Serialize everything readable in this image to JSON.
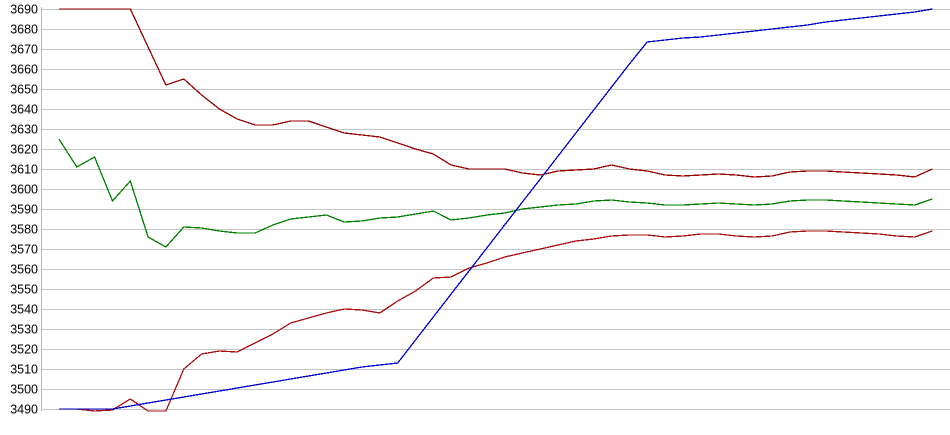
{
  "chart_data": {
    "type": "line",
    "title": "",
    "legend": "none",
    "grid": "horizontal",
    "x_axis": {
      "labels_visible": false,
      "num_points": 50
    },
    "y_axis": {
      "min": 3490,
      "max": 3690,
      "tick_step": 10,
      "tick_labels": [
        "3690",
        "3680",
        "3670",
        "3660",
        "3650",
        "3640",
        "3630",
        "3620",
        "3610",
        "3600",
        "3590",
        "3580",
        "3570",
        "3560",
        "3550",
        "3540",
        "3530",
        "3520",
        "3510",
        "3500",
        "3490"
      ]
    },
    "series": [
      {
        "name": "upper-dark-red-line",
        "color": "#990000",
        "values": [
          3690,
          3690,
          3690,
          3690,
          3690,
          3671,
          3652,
          3655,
          3647,
          3640,
          3635,
          3632,
          3632,
          3634,
          3634,
          3631,
          3628,
          3627,
          3626,
          3623,
          3620,
          3617.5,
          3612,
          3610,
          3610,
          3610,
          3608,
          3607,
          3609,
          3609.5,
          3610,
          3612,
          3610,
          3609,
          3607,
          3606.5,
          3607,
          3607.5,
          3607,
          3606,
          3606.5,
          3608.5,
          3609,
          3609,
          3608.5,
          3608,
          3607.5,
          3607,
          3606,
          3610
        ]
      },
      {
        "name": "green-line",
        "color": "#008000",
        "values": [
          3625,
          3611,
          3616,
          3594,
          3604,
          3576,
          3571,
          3581,
          3580.5,
          3579,
          3578,
          3578,
          3582,
          3585,
          3586,
          3587,
          3583.5,
          3584,
          3585.5,
          3586,
          3587.5,
          3589,
          3584.5,
          3585.5,
          3587,
          3588,
          3590,
          3591,
          3592,
          3592.5,
          3594,
          3594.5,
          3593.5,
          3593,
          3592,
          3592,
          3592.5,
          3593,
          3592.5,
          3592,
          3592.5,
          3594,
          3594.5,
          3594.5,
          3594,
          3593.5,
          3593,
          3592.5,
          3592,
          3595
        ]
      },
      {
        "name": "lower-red-line",
        "color": "#aa1111",
        "values": [
          null,
          3490,
          3489,
          3489.5,
          3495,
          3489,
          3489,
          3510,
          3517.5,
          3519,
          3518.5,
          3523,
          3527.5,
          3533,
          3535.5,
          3538,
          3540,
          3539.5,
          3538,
          3544,
          3549,
          3555.5,
          3556,
          3560.5,
          3563,
          3566,
          3568,
          3570,
          3572,
          3574,
          3575,
          3576.5,
          3577,
          3577,
          3576,
          3576.5,
          3577.5,
          3577.5,
          3576.5,
          3576,
          3576.5,
          3578.5,
          3579,
          3579,
          3578.5,
          3578,
          3577.5,
          3576.5,
          3576,
          3579
        ]
      },
      {
        "name": "blue-line",
        "color": "#0000cc",
        "values": [
          3490,
          3490,
          3490,
          3490,
          3491.5,
          3493,
          3494.5,
          3496,
          3497.5,
          3499,
          3500.5,
          3502,
          3503.5,
          3505,
          3506.5,
          3508,
          3509.5,
          3511,
          3512,
          3513,
          3524.5,
          3536,
          3547.5,
          3559,
          3570.5,
          3582,
          3593.5,
          3605,
          3616.5,
          3628,
          3639.5,
          3651,
          3662.5,
          3673.5,
          3674.5,
          3675.5,
          3676,
          3677,
          3678,
          3679,
          3680,
          3681,
          3682,
          3683.5,
          3684.5,
          3685.5,
          3686.5,
          3687.5,
          3688.5,
          3690
        ]
      }
    ],
    "style": {
      "grid_color": "#c6c6c6",
      "axis_color": "#b8b8b8",
      "tick_label_color": "#000000",
      "background": "#ffffff"
    }
  }
}
